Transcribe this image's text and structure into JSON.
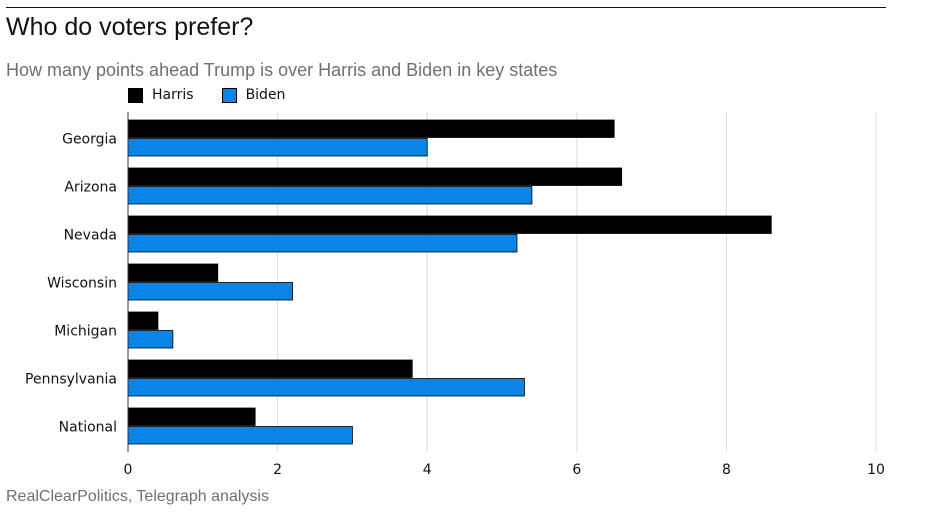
{
  "title": "Who do voters prefer?",
  "subtitle": "How many points ahead Trump is over Harris and Biden in key states",
  "source": "RealClearPolitics, Telegraph analysis",
  "colors": {
    "harris": "#000000",
    "biden": "#0b84e8",
    "grid": "#dddddd",
    "text": "#121212",
    "muted": "#707070"
  },
  "chart_data": {
    "type": "bar",
    "orientation": "horizontal",
    "title": "Who do voters prefer?",
    "subtitle": "How many points ahead Trump is over Harris and Biden in key states",
    "xlabel": "",
    "ylabel": "",
    "xlim": [
      0,
      10
    ],
    "x_ticks": [
      0,
      2,
      4,
      6,
      8,
      10
    ],
    "grid": true,
    "legend_position": "top-left",
    "categories": [
      "Georgia",
      "Arizona",
      "Nevada",
      "Wisconsin",
      "Michigan",
      "Pennsylvania",
      "National"
    ],
    "series": [
      {
        "name": "Harris",
        "color": "#000000",
        "values": [
          6.5,
          6.6,
          8.6,
          1.2,
          0.4,
          3.8,
          1.7
        ]
      },
      {
        "name": "Biden",
        "color": "#0b84e8",
        "values": [
          4.0,
          5.4,
          5.2,
          2.2,
          0.6,
          5.3,
          3.0
        ]
      }
    ]
  }
}
